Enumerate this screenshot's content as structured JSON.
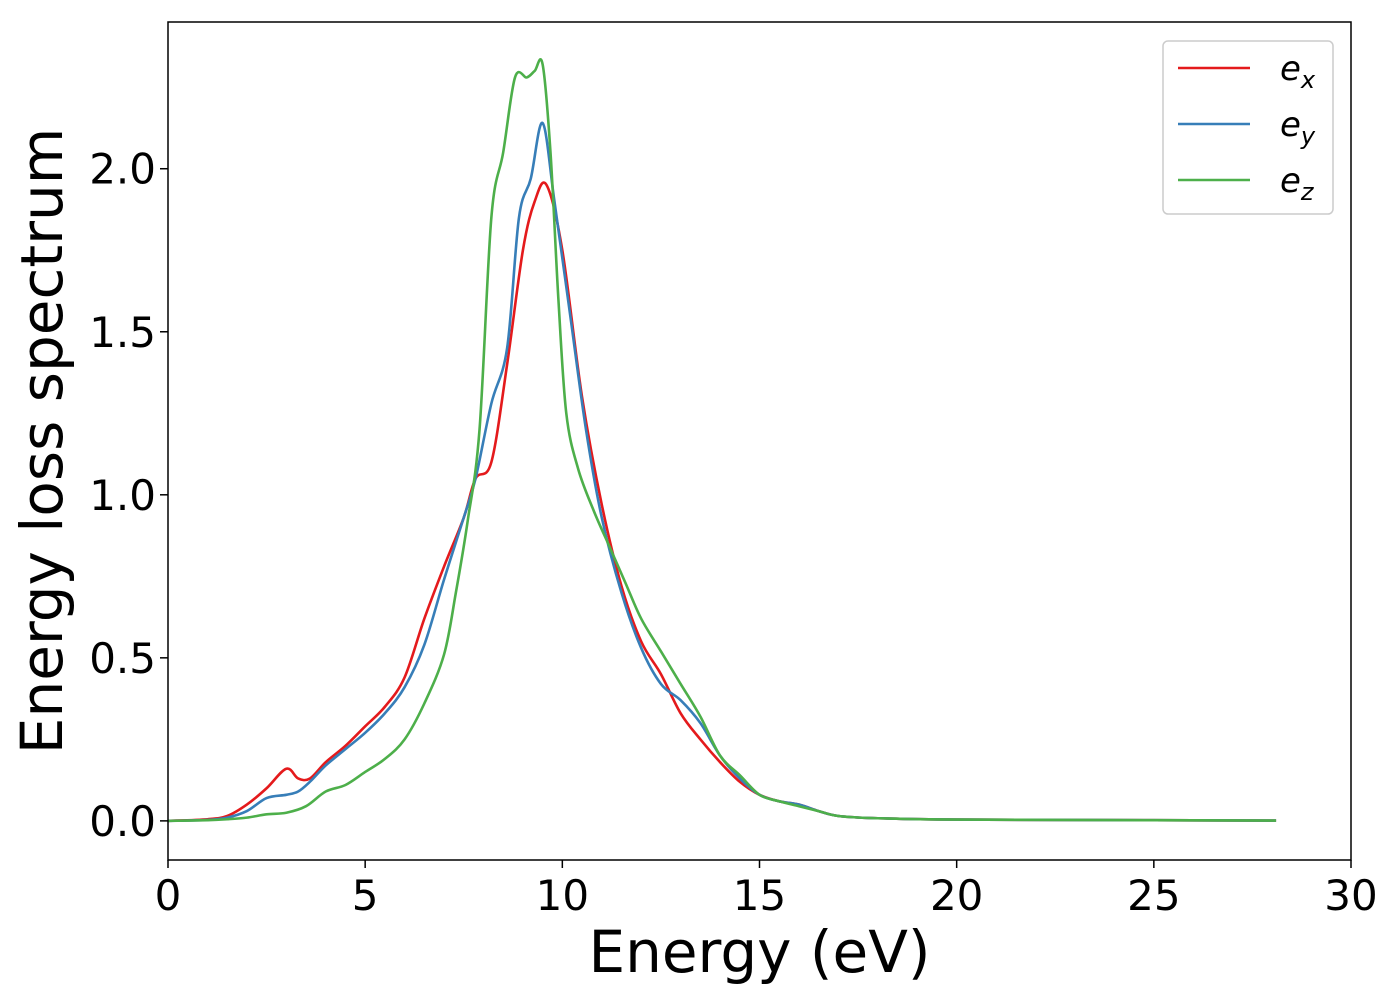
{
  "chart_data": {
    "type": "line",
    "xlabel": "Energy (eV)",
    "ylabel": "Energy loss spectrum",
    "xlim": [
      0,
      30
    ],
    "ylim": [
      -0.12,
      2.45
    ],
    "x_ticks": [
      0,
      5,
      10,
      15,
      20,
      25,
      30
    ],
    "y_ticks": [
      0.0,
      0.5,
      1.0,
      1.5,
      2.0
    ],
    "x_tick_labels": [
      "0",
      "5",
      "10",
      "15",
      "20",
      "25",
      "30"
    ],
    "y_tick_labels": [
      "0.0",
      "0.5",
      "1.0",
      "1.5",
      "2.0"
    ],
    "grid": false,
    "legend_position": "top-right",
    "series": [
      {
        "name_base": "e",
        "name_sub": "x",
        "color": "#e41a1c",
        "x": [
          0,
          1,
          1.5,
          2,
          2.5,
          3,
          3.3,
          3.6,
          4,
          4.5,
          5,
          5.5,
          6,
          6.5,
          7,
          7.5,
          7.8,
          8.2,
          8.6,
          9.0,
          9.3,
          9.6,
          10.0,
          10.5,
          11,
          11.5,
          12,
          12.5,
          13,
          13.5,
          14,
          14.5,
          15,
          15.5,
          16,
          16.5,
          17,
          18,
          20,
          25,
          28.1
        ],
        "y": [
          0.0,
          0.005,
          0.015,
          0.05,
          0.1,
          0.16,
          0.13,
          0.13,
          0.18,
          0.23,
          0.29,
          0.35,
          0.44,
          0.62,
          0.78,
          0.93,
          1.05,
          1.1,
          1.4,
          1.75,
          1.9,
          1.95,
          1.75,
          1.3,
          0.97,
          0.72,
          0.55,
          0.45,
          0.33,
          0.25,
          0.18,
          0.12,
          0.08,
          0.06,
          0.05,
          0.03,
          0.015,
          0.008,
          0.004,
          0.002,
          0.001
        ]
      },
      {
        "name_base": "e",
        "name_sub": "y",
        "color": "#377eb8",
        "x": [
          0,
          1,
          1.5,
          2,
          2.5,
          3,
          3.3,
          3.6,
          4,
          4.5,
          5,
          5.5,
          6,
          6.5,
          7,
          7.5,
          7.8,
          8.2,
          8.6,
          8.9,
          9.2,
          9.5,
          9.8,
          10.2,
          10.6,
          11,
          11.5,
          12,
          12.5,
          13,
          13.5,
          14,
          14.5,
          15,
          15.5,
          16,
          16.5,
          17,
          18,
          20,
          25,
          28.1
        ],
        "y": [
          0.0,
          0.003,
          0.01,
          0.03,
          0.07,
          0.08,
          0.09,
          0.12,
          0.17,
          0.22,
          0.27,
          0.33,
          0.41,
          0.54,
          0.74,
          0.93,
          1.05,
          1.28,
          1.45,
          1.85,
          1.97,
          2.14,
          1.9,
          1.55,
          1.2,
          0.93,
          0.7,
          0.53,
          0.42,
          0.37,
          0.3,
          0.2,
          0.13,
          0.08,
          0.06,
          0.05,
          0.03,
          0.015,
          0.008,
          0.004,
          0.002,
          0.001
        ]
      },
      {
        "name_base": "e",
        "name_sub": "z",
        "color": "#4daf4a",
        "x": [
          0,
          1,
          1.5,
          2,
          2.5,
          3,
          3.5,
          4,
          4.5,
          5,
          5.5,
          6,
          6.5,
          7,
          7.3,
          7.6,
          7.9,
          8.2,
          8.5,
          8.8,
          9.1,
          9.3,
          9.5,
          9.7,
          9.9,
          10.1,
          10.4,
          10.8,
          11.2,
          11.6,
          12,
          12.5,
          13,
          13.5,
          14,
          14.5,
          15,
          15.5,
          16,
          16.5,
          17,
          18,
          20,
          25,
          28.1
        ],
        "y": [
          0.0,
          0.002,
          0.005,
          0.01,
          0.02,
          0.025,
          0.045,
          0.09,
          0.11,
          0.15,
          0.19,
          0.25,
          0.36,
          0.51,
          0.7,
          0.92,
          1.2,
          1.85,
          2.05,
          2.28,
          2.28,
          2.3,
          2.32,
          2.05,
          1.6,
          1.25,
          1.08,
          0.95,
          0.84,
          0.73,
          0.62,
          0.52,
          0.42,
          0.32,
          0.2,
          0.14,
          0.08,
          0.06,
          0.045,
          0.03,
          0.015,
          0.008,
          0.004,
          0.002,
          0.001
        ]
      }
    ]
  }
}
